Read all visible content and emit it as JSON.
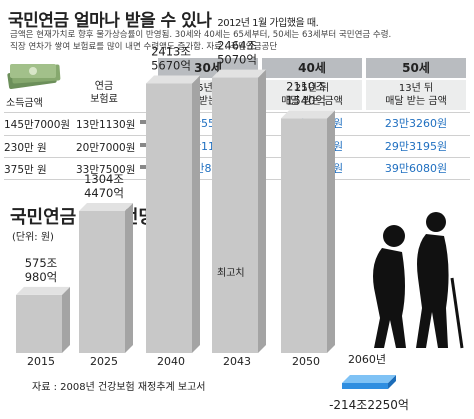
{
  "header": {
    "title": "국민연금 얼마나 받을 수 있나",
    "title_note": "2012년 1월 가입했을 때.",
    "notes": [
      "금액은 현재가치로 향후 물가상승률이 반영됨. 30세와 40세는 65세부터, 50세는 63세부터 국민연금 수령.",
      "직장 연차가 쌓여 보험료를 많이 내면 수령액도 증가함. 자료 : 국민연금공단"
    ]
  },
  "table": {
    "income_label": "소득금액",
    "premium_label": "연금\n보험료",
    "columns": [
      {
        "age": "30세",
        "sub": "35년 뒤\n매달 받는 금액"
      },
      {
        "age": "40세",
        "sub": "25년 뒤\n매달 받는 금액"
      },
      {
        "age": "50세",
        "sub": "13년 뒤\n매달 받는 금액"
      }
    ],
    "rows": [
      {
        "income": "145만7000원",
        "premium": "13만1130원",
        "values": [
          "60만5560원",
          "44만1510원",
          "23만3260원"
        ]
      },
      {
        "income": "230만 원",
        "premium": "20만7000원",
        "values": [
          "76만1150원",
          "55만4950원",
          "29만3195원"
        ]
      },
      {
        "income": "375만 원",
        "premium": "33만7500원",
        "values": [
          "102만8580원",
          "74만9870원",
          "39만6080원"
        ]
      }
    ]
  },
  "finance": {
    "title": "국민연금 재정 전망",
    "unit": "(단위: 원)",
    "source": "자료 : 2008년 건강보험 재정추계 보고서",
    "peak_label": "최고치"
  },
  "chart_data": {
    "type": "bar",
    "title": "국민연금 재정 전망",
    "ylabel": "(단위: 원)",
    "categories": [
      "2015",
      "2025",
      "2040",
      "2043",
      "2050",
      "2060년"
    ],
    "values": [
      575.098,
      1304.447,
      2413.567,
      2464.507,
      2110.154,
      -214.225
    ],
    "value_unit": "조",
    "value_labels": [
      "575조\n980억",
      "1304조\n4470억",
      "2413조\n5670억",
      "2464조\n5070억",
      "2110조\n1540억",
      "-214조2250억"
    ],
    "ylim": [
      -300,
      2600
    ],
    "colors": {
      "bar": "#c8c8c8",
      "negative": "#2f8ee0"
    }
  }
}
